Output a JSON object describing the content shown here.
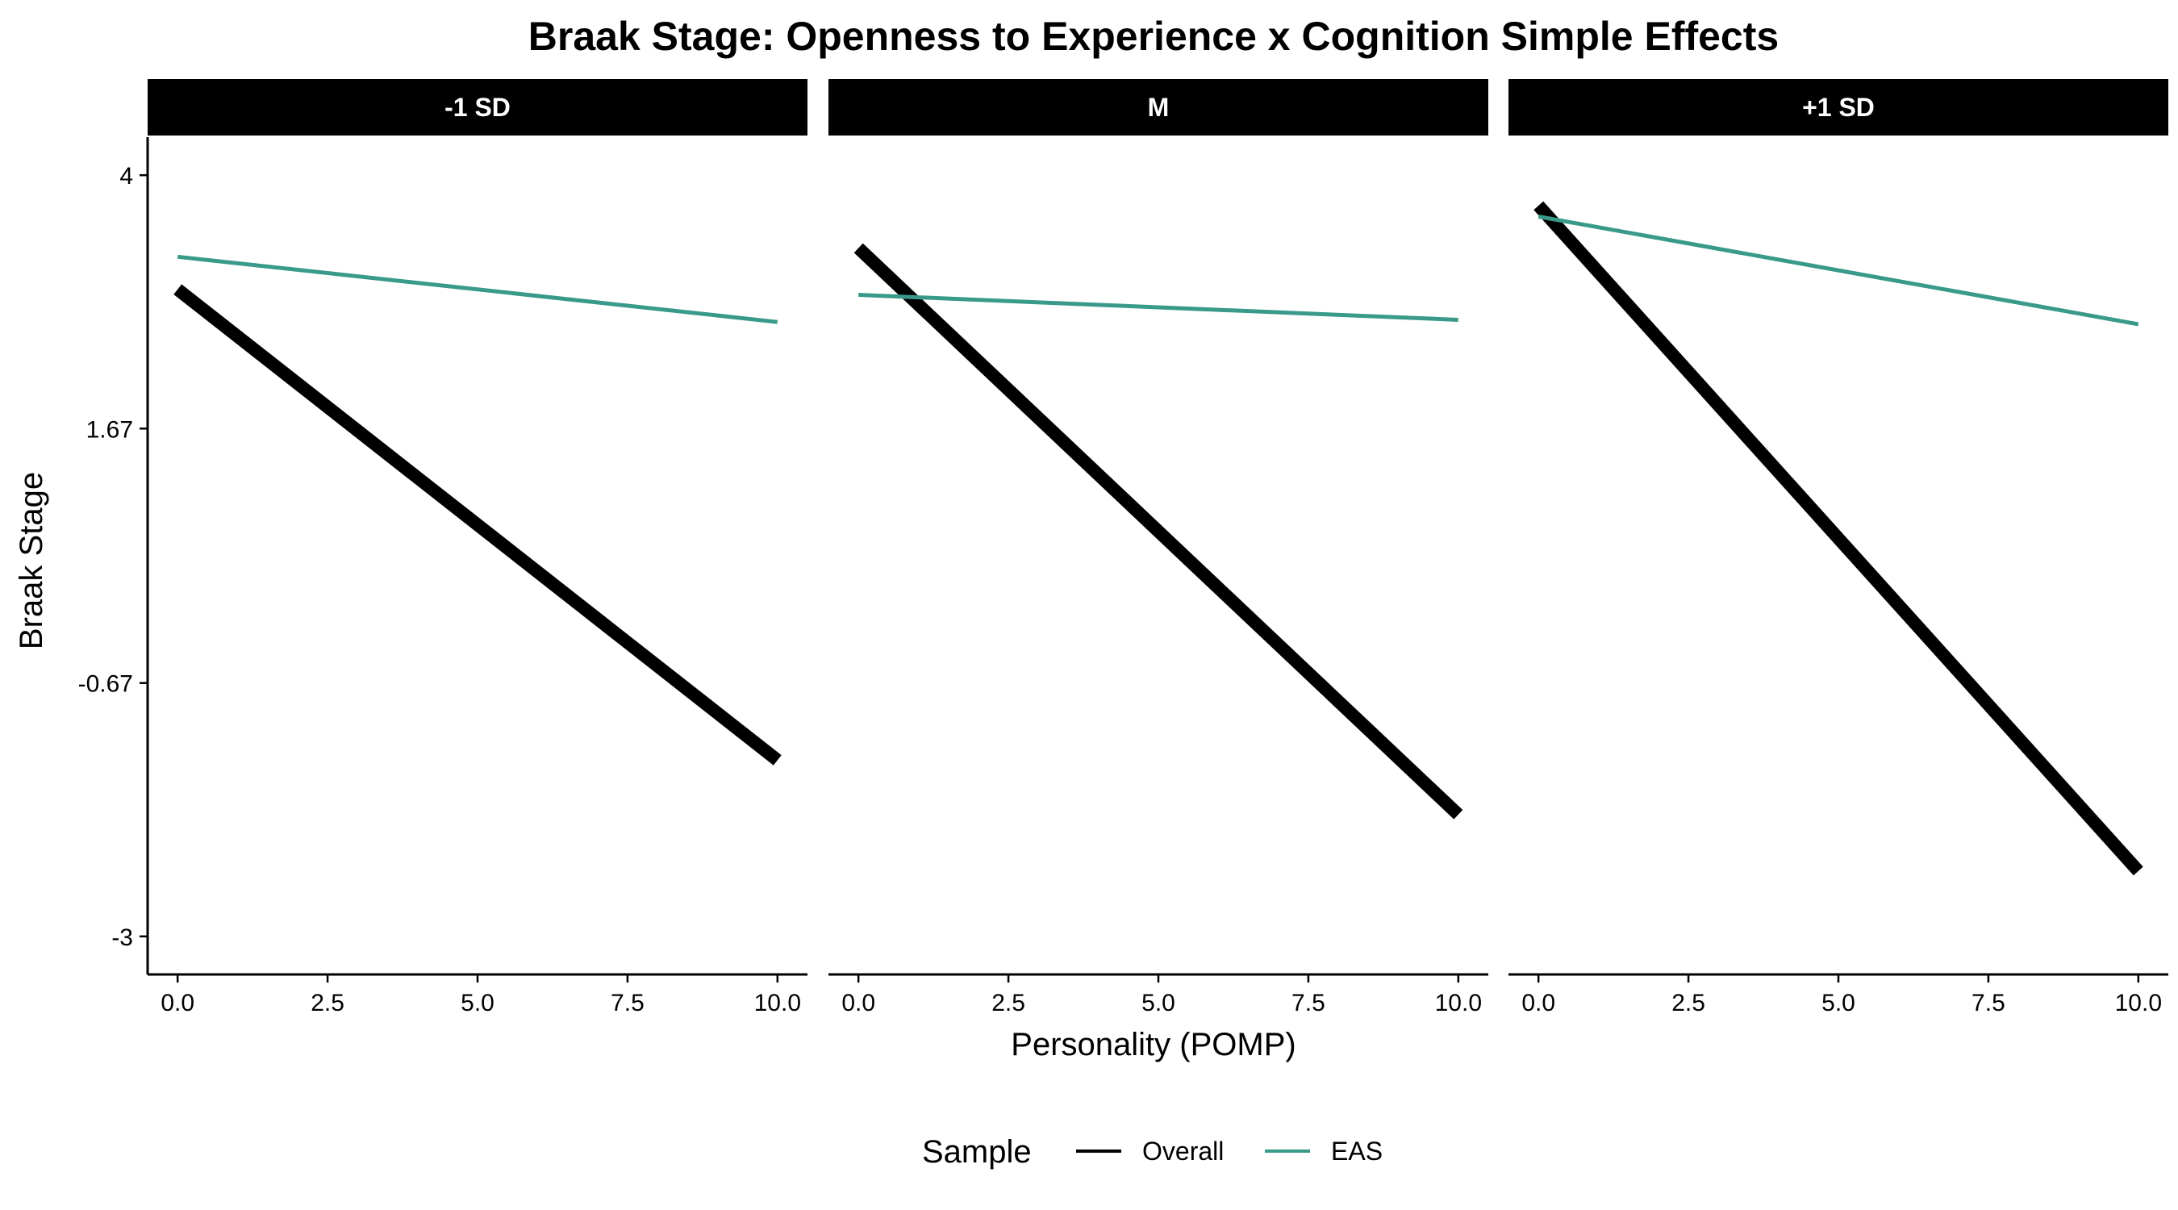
{
  "chart_data": {
    "type": "line",
    "title": "Braak Stage: Openness to Experience x Cognition Simple Effects",
    "xlabel": "Personality (POMP)",
    "ylabel": "Braak Stage",
    "xlim": [
      -0.5,
      10.5
    ],
    "ylim": [
      -3.35,
      4.35
    ],
    "x_ticks": [
      0,
      2.5,
      5,
      7.5,
      10
    ],
    "x_tick_labels": [
      "0.0",
      "2.5",
      "5.0",
      "7.5",
      "10.0"
    ],
    "y_ticks": [
      -3,
      -0.67,
      1.67,
      4
    ],
    "y_tick_labels": [
      "-3",
      "-0.67",
      "1.67",
      "4"
    ],
    "grid": false,
    "legend": {
      "title": "Sample",
      "position": "bottom",
      "entries": [
        "Overall",
        "EAS"
      ]
    },
    "panels": [
      {
        "label": "-1 SD",
        "series": [
          {
            "name": "Overall",
            "color": "#000000",
            "x": [
              0,
              10
            ],
            "y": [
              2.95,
              -1.38
            ]
          },
          {
            "name": "EAS",
            "color": "#3a9a8a",
            "x": [
              0,
              10
            ],
            "y": [
              3.25,
              2.65
            ]
          }
        ]
      },
      {
        "label": "M",
        "series": [
          {
            "name": "Overall",
            "color": "#000000",
            "x": [
              0,
              10
            ],
            "y": [
              3.33,
              -1.88
            ]
          },
          {
            "name": "EAS",
            "color": "#3a9a8a",
            "x": [
              0,
              10
            ],
            "y": [
              2.9,
              2.67
            ]
          }
        ]
      },
      {
        "label": "+1 SD",
        "series": [
          {
            "name": "Overall",
            "color": "#000000",
            "x": [
              0,
              10
            ],
            "y": [
              3.72,
              -2.4
            ]
          },
          {
            "name": "EAS",
            "color": "#3a9a8a",
            "x": [
              0,
              10
            ],
            "y": [
              3.62,
              2.63
            ]
          }
        ]
      }
    ]
  }
}
